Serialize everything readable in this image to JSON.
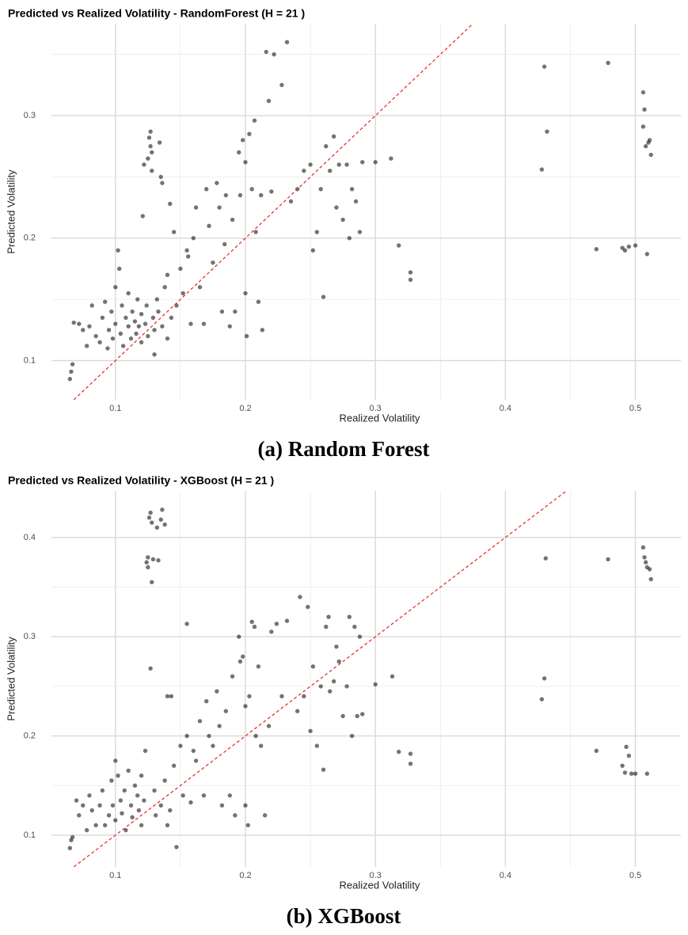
{
  "chart_data": [
    {
      "type": "scatter",
      "title": "Predicted vs Realized Volatility - RandomForest (H = 21 )",
      "x_label": "Realized Volatility",
      "y_label": "Predicted Volatility",
      "caption": "(a) Random Forest",
      "color": "#000000",
      "opacity": 0.55,
      "grid": true,
      "diagonal": true,
      "diagonal_color": "#e8332e",
      "xlim": [
        0.0508,
        0.535
      ],
      "ylim": [
        0.068,
        0.375
      ],
      "xticks": [
        0.1,
        0.2,
        0.3,
        0.4,
        0.5
      ],
      "yticks": [
        0.1,
        0.2,
        0.3
      ],
      "x": [
        0.065,
        0.066,
        0.067,
        0.068,
        0.072,
        0.075,
        0.078,
        0.08,
        0.082,
        0.085,
        0.088,
        0.09,
        0.092,
        0.094,
        0.095,
        0.097,
        0.098,
        0.1,
        0.1,
        0.102,
        0.103,
        0.104,
        0.105,
        0.106,
        0.108,
        0.11,
        0.11,
        0.112,
        0.113,
        0.115,
        0.116,
        0.117,
        0.118,
        0.12,
        0.12,
        0.121,
        0.122,
        0.123,
        0.124,
        0.125,
        0.125,
        0.126,
        0.127,
        0.127,
        0.128,
        0.128,
        0.129,
        0.13,
        0.13,
        0.132,
        0.133,
        0.134,
        0.135,
        0.136,
        0.136,
        0.138,
        0.14,
        0.14,
        0.142,
        0.143,
        0.145,
        0.147,
        0.15,
        0.152,
        0.155,
        0.156,
        0.158,
        0.16,
        0.162,
        0.165,
        0.168,
        0.17,
        0.172,
        0.175,
        0.178,
        0.18,
        0.182,
        0.184,
        0.185,
        0.188,
        0.19,
        0.192,
        0.195,
        0.196,
        0.198,
        0.2,
        0.2,
        0.201,
        0.203,
        0.205,
        0.207,
        0.208,
        0.21,
        0.212,
        0.213,
        0.216,
        0.218,
        0.222,
        0.22,
        0.228,
        0.232,
        0.235,
        0.24,
        0.245,
        0.25,
        0.252,
        0.255,
        0.258,
        0.26,
        0.262,
        0.265,
        0.268,
        0.27,
        0.272,
        0.275,
        0.278,
        0.28,
        0.282,
        0.285,
        0.288,
        0.29,
        0.3,
        0.312,
        0.318,
        0.327,
        0.327,
        0.428,
        0.43,
        0.432,
        0.47,
        0.479,
        0.49,
        0.492,
        0.495,
        0.5,
        0.506,
        0.507,
        0.506,
        0.508,
        0.509,
        0.51,
        0.511,
        0.512
      ],
      "values": [
        0.085,
        0.091,
        0.097,
        0.131,
        0.13,
        0.125,
        0.112,
        0.128,
        0.145,
        0.12,
        0.115,
        0.135,
        0.148,
        0.11,
        0.125,
        0.14,
        0.118,
        0.16,
        0.13,
        0.19,
        0.175,
        0.122,
        0.145,
        0.112,
        0.135,
        0.155,
        0.128,
        0.118,
        0.14,
        0.132,
        0.122,
        0.15,
        0.128,
        0.138,
        0.115,
        0.218,
        0.26,
        0.13,
        0.145,
        0.12,
        0.265,
        0.282,
        0.287,
        0.275,
        0.27,
        0.255,
        0.135,
        0.105,
        0.125,
        0.15,
        0.14,
        0.278,
        0.25,
        0.245,
        0.128,
        0.16,
        0.17,
        0.118,
        0.228,
        0.135,
        0.205,
        0.145,
        0.175,
        0.155,
        0.19,
        0.185,
        0.13,
        0.2,
        0.225,
        0.16,
        0.13,
        0.24,
        0.21,
        0.18,
        0.245,
        0.225,
        0.14,
        0.195,
        0.235,
        0.128,
        0.215,
        0.14,
        0.27,
        0.235,
        0.28,
        0.155,
        0.262,
        0.12,
        0.285,
        0.24,
        0.296,
        0.205,
        0.148,
        0.235,
        0.125,
        0.352,
        0.312,
        0.35,
        0.238,
        0.325,
        0.36,
        0.23,
        0.24,
        0.255,
        0.26,
        0.19,
        0.205,
        0.24,
        0.152,
        0.275,
        0.255,
        0.283,
        0.225,
        0.26,
        0.215,
        0.26,
        0.2,
        0.24,
        0.23,
        0.205,
        0.262,
        0.262,
        0.265,
        0.194,
        0.172,
        0.166,
        0.256,
        0.34,
        0.287,
        0.191,
        0.343,
        0.192,
        0.19,
        0.193,
        0.194,
        0.319,
        0.305,
        0.291,
        0.275,
        0.187,
        0.278,
        0.28,
        0.268
      ]
    },
    {
      "type": "scatter",
      "title": "Predicted vs Realized Volatility - XGBoost (H = 21 )",
      "x_label": "Realized Volatility",
      "y_label": "Predicted Volatility",
      "caption": "(b) XGBoost",
      "color": "#000000",
      "opacity": 0.55,
      "grid": true,
      "diagonal": true,
      "diagonal_color": "#e8332e",
      "xlim": [
        0.0508,
        0.535
      ],
      "ylim": [
        0.068,
        0.447
      ],
      "xticks": [
        0.1,
        0.2,
        0.3,
        0.4,
        0.5
      ],
      "yticks": [
        0.1,
        0.2,
        0.3,
        0.4
      ],
      "x": [
        0.065,
        0.066,
        0.067,
        0.07,
        0.072,
        0.075,
        0.078,
        0.08,
        0.082,
        0.085,
        0.088,
        0.09,
        0.092,
        0.095,
        0.097,
        0.098,
        0.1,
        0.1,
        0.102,
        0.104,
        0.105,
        0.107,
        0.108,
        0.11,
        0.112,
        0.113,
        0.115,
        0.117,
        0.118,
        0.12,
        0.12,
        0.122,
        0.123,
        0.124,
        0.125,
        0.125,
        0.126,
        0.127,
        0.127,
        0.128,
        0.128,
        0.129,
        0.13,
        0.131,
        0.132,
        0.133,
        0.135,
        0.136,
        0.135,
        0.138,
        0.138,
        0.14,
        0.14,
        0.142,
        0.143,
        0.145,
        0.147,
        0.15,
        0.152,
        0.155,
        0.155,
        0.158,
        0.16,
        0.162,
        0.165,
        0.168,
        0.17,
        0.172,
        0.175,
        0.178,
        0.18,
        0.182,
        0.185,
        0.188,
        0.19,
        0.192,
        0.195,
        0.196,
        0.198,
        0.2,
        0.2,
        0.202,
        0.203,
        0.205,
        0.207,
        0.208,
        0.21,
        0.212,
        0.215,
        0.218,
        0.22,
        0.224,
        0.228,
        0.232,
        0.24,
        0.242,
        0.245,
        0.248,
        0.25,
        0.252,
        0.255,
        0.258,
        0.26,
        0.262,
        0.264,
        0.265,
        0.268,
        0.27,
        0.272,
        0.275,
        0.278,
        0.28,
        0.282,
        0.284,
        0.286,
        0.288,
        0.29,
        0.3,
        0.313,
        0.318,
        0.327,
        0.327,
        0.428,
        0.43,
        0.431,
        0.47,
        0.479,
        0.49,
        0.492,
        0.493,
        0.495,
        0.497,
        0.5,
        0.506,
        0.507,
        0.508,
        0.509,
        0.509,
        0.511,
        0.512
      ],
      "values": [
        0.087,
        0.095,
        0.098,
        0.135,
        0.12,
        0.13,
        0.105,
        0.14,
        0.125,
        0.11,
        0.13,
        0.145,
        0.11,
        0.12,
        0.155,
        0.13,
        0.175,
        0.115,
        0.16,
        0.135,
        0.122,
        0.145,
        0.105,
        0.165,
        0.13,
        0.118,
        0.15,
        0.14,
        0.125,
        0.16,
        0.11,
        0.135,
        0.185,
        0.375,
        0.38,
        0.37,
        0.42,
        0.425,
        0.268,
        0.415,
        0.355,
        0.378,
        0.145,
        0.12,
        0.41,
        0.377,
        0.418,
        0.428,
        0.13,
        0.155,
        0.413,
        0.24,
        0.11,
        0.125,
        0.24,
        0.17,
        0.088,
        0.19,
        0.14,
        0.313,
        0.2,
        0.133,
        0.185,
        0.175,
        0.215,
        0.14,
        0.235,
        0.2,
        0.19,
        0.245,
        0.21,
        0.13,
        0.225,
        0.14,
        0.26,
        0.12,
        0.3,
        0.275,
        0.28,
        0.23,
        0.13,
        0.11,
        0.24,
        0.315,
        0.31,
        0.2,
        0.27,
        0.19,
        0.12,
        0.21,
        0.305,
        0.313,
        0.24,
        0.316,
        0.225,
        0.34,
        0.24,
        0.33,
        0.205,
        0.27,
        0.19,
        0.25,
        0.166,
        0.31,
        0.32,
        0.245,
        0.255,
        0.29,
        0.275,
        0.22,
        0.25,
        0.32,
        0.2,
        0.31,
        0.22,
        0.3,
        0.222,
        0.252,
        0.26,
        0.184,
        0.182,
        0.172,
        0.237,
        0.258,
        0.379,
        0.185,
        0.378,
        0.17,
        0.163,
        0.189,
        0.18,
        0.162,
        0.162,
        0.39,
        0.38,
        0.375,
        0.37,
        0.162,
        0.368,
        0.358
      ]
    }
  ]
}
